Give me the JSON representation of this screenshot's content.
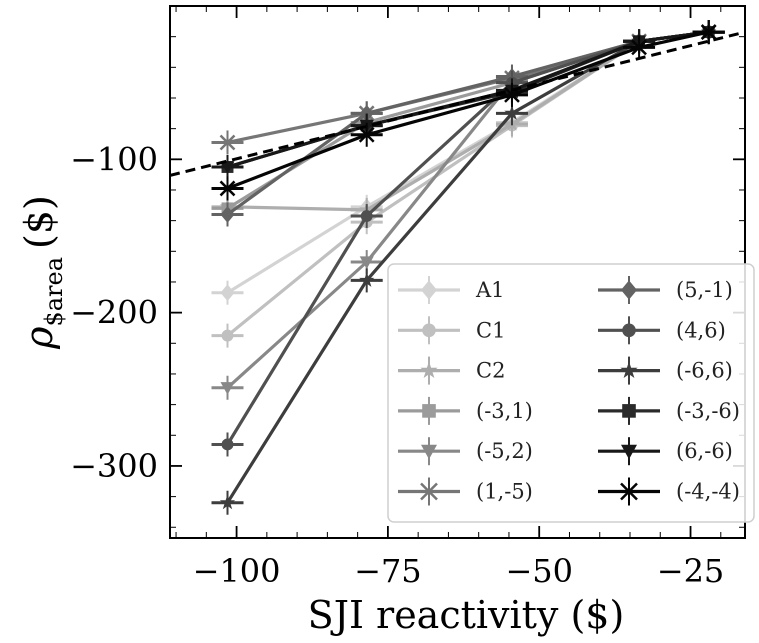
{
  "chart_data": {
    "type": "line",
    "xlabel": "SJI reactivity ($)",
    "ylabel": "ρ",
    "ylabel_sub": "$area",
    "ylabel_unit": "($)",
    "xlim": [
      -111,
      -16
    ],
    "ylim": [
      -347,
      0
    ],
    "xticks": [
      -100,
      -75,
      -50,
      -25
    ],
    "xtick_labels": [
      "−100",
      "−75",
      "−50",
      "−25"
    ],
    "yticks": [
      -100,
      -200,
      -300
    ],
    "ytick_labels": [
      "−100",
      "−200",
      "−300"
    ],
    "x": [
      -101.5,
      -78.5,
      -54.5,
      -33.5,
      -22
    ],
    "dashed_fit": {
      "x": [
        -111,
        -16
      ],
      "y": [
        -110.5,
        -17
      ]
    },
    "legend_position": "lower-right",
    "series": [
      {
        "name": "A1",
        "color": "#d3d3d3",
        "marker": "diamond",
        "values": [
          -187,
          -131,
          -76,
          -23,
          -17
        ]
      },
      {
        "name": "C1",
        "color": "#c0c0c0",
        "marker": "circle",
        "values": [
          -215,
          -141,
          -78,
          -23,
          -17
        ]
      },
      {
        "name": "C2",
        "color": "#aeaeae",
        "marker": "star",
        "values": [
          -131,
          -133,
          -77,
          -23,
          -17
        ]
      },
      {
        "name": "(-3,1)",
        "color": "#9b9b9b",
        "marker": "square",
        "values": [
          -132,
          -76,
          -50,
          -23,
          -17
        ]
      },
      {
        "name": "(-5,2)",
        "color": "#888888",
        "marker": "triangle-down",
        "values": [
          -249,
          -167,
          -49,
          -23,
          -17
        ]
      },
      {
        "name": "(1,-5)",
        "color": "#767676",
        "marker": "x",
        "values": [
          -89,
          -70,
          -47,
          -23,
          -17
        ]
      },
      {
        "name": "(5,-1)",
        "color": "#636363",
        "marker": "diamond",
        "values": [
          -136,
          -70,
          -46,
          -23,
          -17
        ]
      },
      {
        "name": "(4,6)",
        "color": "#505050",
        "marker": "circle",
        "values": [
          -286,
          -137,
          -50,
          -23,
          -17
        ]
      },
      {
        "name": "(-6,6)",
        "color": "#3d3d3d",
        "marker": "star",
        "values": [
          -324,
          -179,
          -70,
          -23,
          -17
        ]
      },
      {
        "name": "(-3,-6)",
        "color": "#2a2a2a",
        "marker": "square",
        "values": [
          -105,
          -78,
          -56,
          -23,
          -17
        ]
      },
      {
        "name": "(6,-6)",
        "color": "#181818",
        "marker": "triangle-down",
        "values": [
          -105,
          -78,
          -55,
          -23,
          -17
        ]
      },
      {
        "name": "(-4,-4)",
        "color": "#050505",
        "marker": "x",
        "values": [
          -119,
          -84,
          -58,
          -27,
          -17
        ]
      }
    ]
  }
}
